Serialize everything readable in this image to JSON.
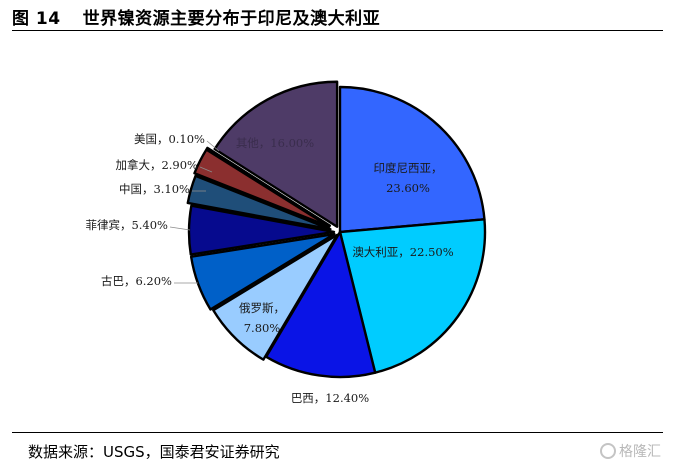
{
  "figure": {
    "number": "图 14",
    "title": "世界镍资源主要分布于印尼及澳大利亚"
  },
  "source": "数据来源：USGS，国泰君安证券研究",
  "watermark": "格隆汇",
  "chart_data": {
    "type": "pie",
    "start": "top",
    "direction": "clockwise",
    "slices": [
      {
        "label": "印度尼西亚",
        "value": 23.6,
        "display": "23.60%",
        "color": "#3366FF"
      },
      {
        "label": "澳大利亚",
        "value": 22.5,
        "display": "22.50%",
        "color": "#00CCFF"
      },
      {
        "label": "巴西",
        "value": 12.4,
        "display": "12.40%",
        "color": "#0A14E6"
      },
      {
        "label": "俄罗斯",
        "value": 7.8,
        "display": "7.80%",
        "color": "#99CCFF"
      },
      {
        "label": "古巴",
        "value": 6.2,
        "display": "6.20%",
        "color": "#0060C8"
      },
      {
        "label": "菲律宾",
        "value": 5.4,
        "display": "5.40%",
        "color": "#060A8E"
      },
      {
        "label": "中国",
        "value": 3.1,
        "display": "3.10%",
        "color": "#1F4E79"
      },
      {
        "label": "加拿大",
        "value": 2.9,
        "display": "2.90%",
        "color": "#8B2F2F"
      },
      {
        "label": "美国",
        "value": 0.1,
        "display": "0.10%",
        "color": "#4F81BD"
      },
      {
        "label": "其他",
        "value": 16.0,
        "display": "16.00%",
        "color": "#4E3B67"
      }
    ]
  }
}
